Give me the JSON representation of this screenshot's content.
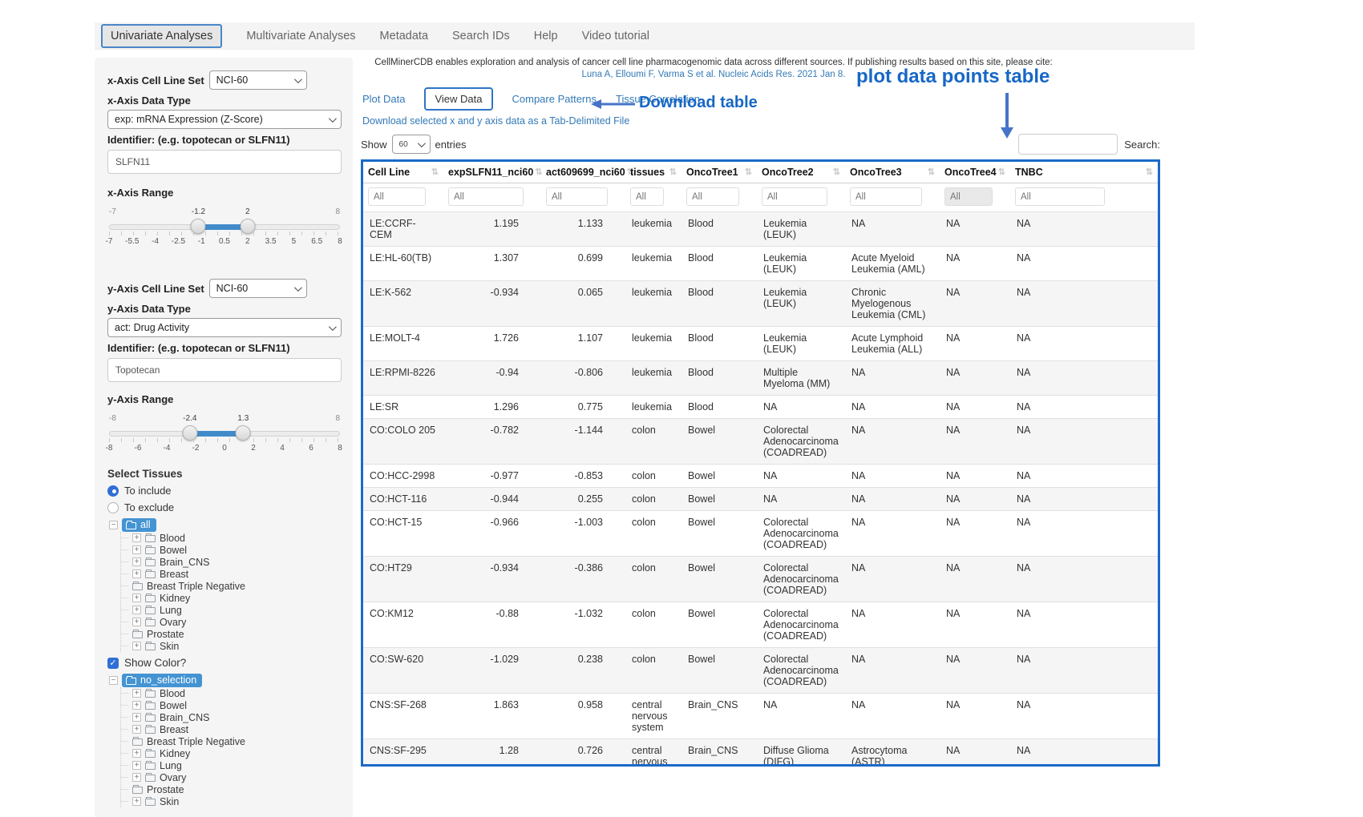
{
  "nav": {
    "items": [
      {
        "label": "Univariate Analyses",
        "active": true
      },
      {
        "label": "Multivariate Analyses",
        "active": false
      },
      {
        "label": "Metadata",
        "active": false
      },
      {
        "label": "Search IDs",
        "active": false
      },
      {
        "label": "Help",
        "active": false
      },
      {
        "label": "Video tutorial",
        "active": false
      }
    ]
  },
  "sidebar": {
    "x_axis": {
      "set_label": "x-Axis Cell Line Set",
      "set_value": "NCI-60",
      "type_label": "x-Axis Data Type",
      "type_value": "exp: mRNA Expression (Z-Score)",
      "id_label": "Identifier: (e.g. topotecan or SLFN11)",
      "id_value": "SLFN11",
      "range_label": "x-Axis Range",
      "range": {
        "min": "-7",
        "max": "8",
        "low": "-1.2",
        "high": "2",
        "low_pct": 38.7,
        "high_pct": 60,
        "ticks": [
          "-7",
          "-5.5",
          "-4",
          "-2.5",
          "-1",
          "0.5",
          "2",
          "3.5",
          "5",
          "6.5",
          "8"
        ]
      }
    },
    "y_axis": {
      "set_label": "y-Axis Cell Line Set",
      "set_value": "NCI-60",
      "type_label": "y-Axis Data Type",
      "type_value": "act: Drug Activity",
      "id_label": "Identifier: (e.g. topotecan or SLFN11)",
      "id_value": "Topotecan",
      "range_label": "y-Axis Range",
      "range": {
        "min": "-8",
        "max": "8",
        "low": "-2.4",
        "high": "1.3",
        "low_pct": 35,
        "high_pct": 58.1,
        "ticks": [
          "-8",
          "-6",
          "-4",
          "-2",
          "0",
          "2",
          "4",
          "6",
          "8"
        ]
      }
    },
    "tissues": {
      "title": "Select Tissues",
      "radio_include": "To include",
      "radio_exclude": "To exclude",
      "include_selected": true,
      "tree_root_1": "all",
      "tree_root_2": "no_selection",
      "show_color": "Show Color?",
      "show_color_checked": true,
      "check_glyph": "✓",
      "items": [
        {
          "label": "Blood"
        },
        {
          "label": "Bowel"
        },
        {
          "label": "Brain_CNS"
        },
        {
          "label": "Breast"
        },
        {
          "label": "Breast Triple Negative",
          "leaf": true
        },
        {
          "label": "Kidney"
        },
        {
          "label": "Lung"
        },
        {
          "label": "Ovary"
        },
        {
          "label": "Prostate",
          "leaf": true
        },
        {
          "label": "Skin"
        }
      ]
    }
  },
  "main": {
    "citation_line1": "CellMinerCDB enables exploration and analysis of cancer cell line pharmacogenomic data across different sources. If publishing results based on this site, please cite:",
    "citation_line2": "Luna A, Elloumi F, Varma S et al. Nucleic Acids Res. 2021 Jan 8.",
    "tabs": [
      {
        "label": "Plot Data",
        "active": false
      },
      {
        "label": "View Data",
        "active": true
      },
      {
        "label": "Compare Patterns",
        "active": false
      },
      {
        "label": "Tissue Correlation",
        "active": false
      }
    ],
    "download_link": "Download selected x and y axis data as a Tab-Delimited File",
    "show_label": "Show",
    "entries_value": "60",
    "entries_label": "entries",
    "search_label": "Search:",
    "annotations": {
      "download": "Download table",
      "plot_table": "plot data points table",
      "color": "#1767c5"
    }
  },
  "table": {
    "columns": [
      "Cell Line",
      "expSLFN11_nci60",
      "act609699_nci60",
      "tissues",
      "OncoTree1",
      "OncoTree2",
      "OncoTree3",
      "OncoTree4",
      "TNBC"
    ],
    "sort_glyph": "⇅",
    "filter_placeholder": "All",
    "filter_disabled_columns": [
      7
    ],
    "rows": [
      [
        "LE:CCRF-CEM",
        "1.195",
        "1.133",
        "leukemia",
        "Blood",
        "Leukemia (LEUK)",
        "NA",
        "NA",
        "NA"
      ],
      [
        "LE:HL-60(TB)",
        "1.307",
        "0.699",
        "leukemia",
        "Blood",
        "Leukemia (LEUK)",
        "Acute Myeloid Leukemia (AML)",
        "NA",
        "NA"
      ],
      [
        "LE:K-562",
        "-0.934",
        "0.065",
        "leukemia",
        "Blood",
        "Leukemia (LEUK)",
        "Chronic Myelogenous Leukemia (CML)",
        "NA",
        "NA"
      ],
      [
        "LE:MOLT-4",
        "1.726",
        "1.107",
        "leukemia",
        "Blood",
        "Leukemia (LEUK)",
        "Acute Lymphoid Leukemia (ALL)",
        "NA",
        "NA"
      ],
      [
        "LE:RPMI-8226",
        "-0.94",
        "-0.806",
        "leukemia",
        "Blood",
        "Multiple Myeloma (MM)",
        "NA",
        "NA",
        "NA"
      ],
      [
        "LE:SR",
        "1.296",
        "0.775",
        "leukemia",
        "Blood",
        "NA",
        "NA",
        "NA",
        "NA"
      ],
      [
        "CO:COLO 205",
        "-0.782",
        "-1.144",
        "colon",
        "Bowel",
        "Colorectal Adenocarcinoma (COADREAD)",
        "NA",
        "NA",
        "NA"
      ],
      [
        "CO:HCC-2998",
        "-0.977",
        "-0.853",
        "colon",
        "Bowel",
        "NA",
        "NA",
        "NA",
        "NA"
      ],
      [
        "CO:HCT-116",
        "-0.944",
        "0.255",
        "colon",
        "Bowel",
        "NA",
        "NA",
        "NA",
        "NA"
      ],
      [
        "CO:HCT-15",
        "-0.966",
        "-1.003",
        "colon",
        "Bowel",
        "Colorectal Adenocarcinoma (COADREAD)",
        "NA",
        "NA",
        "NA"
      ],
      [
        "CO:HT29",
        "-0.934",
        "-0.386",
        "colon",
        "Bowel",
        "Colorectal Adenocarcinoma (COADREAD)",
        "NA",
        "NA",
        "NA"
      ],
      [
        "CO:KM12",
        "-0.88",
        "-1.032",
        "colon",
        "Bowel",
        "Colorectal Adenocarcinoma (COADREAD)",
        "NA",
        "NA",
        "NA"
      ],
      [
        "CO:SW-620",
        "-1.029",
        "0.238",
        "colon",
        "Bowel",
        "Colorectal Adenocarcinoma (COADREAD)",
        "NA",
        "NA",
        "NA"
      ],
      [
        "CNS:SF-268",
        "1.863",
        "0.958",
        "central nervous system",
        "Brain_CNS",
        "NA",
        "NA",
        "NA",
        "NA"
      ],
      [
        "CNS:SF-295",
        "1.28",
        "0.726",
        "central nervous system",
        "Brain_CNS",
        "Diffuse Glioma (DIFG)",
        "Astrocytoma (ASTR)",
        "NA",
        "NA"
      ]
    ]
  }
}
